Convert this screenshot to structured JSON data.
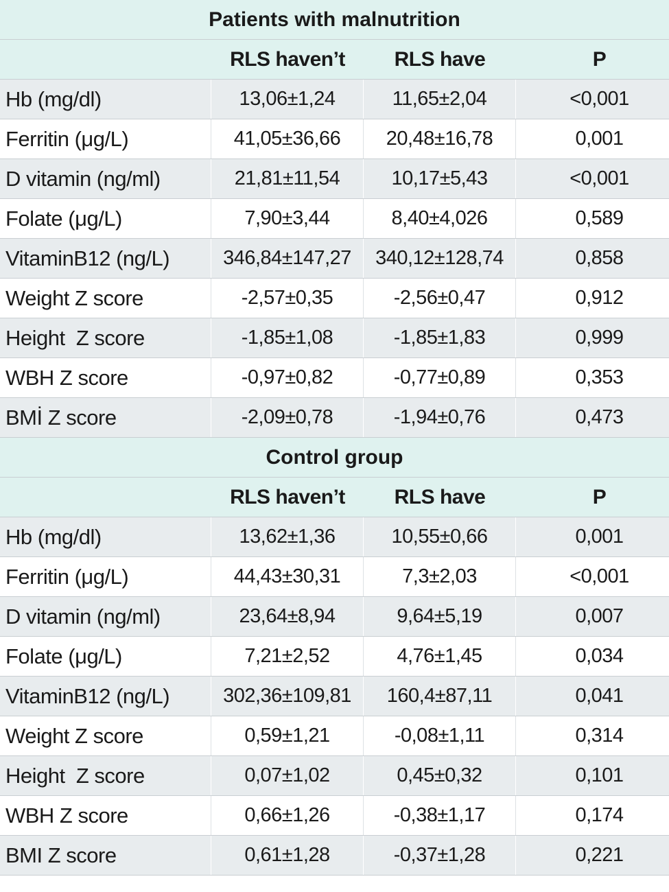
{
  "groups": [
    {
      "title": "Patients with malnutrition",
      "headers": [
        "",
        "RLS haven’t",
        "RLS have",
        "P"
      ],
      "rows": [
        {
          "label": "Hb (mg/dl)",
          "no_rls": "13,06±1,24",
          "rls": "11,65±2,04",
          "p": "<0,001"
        },
        {
          "label": "Ferritin (μg/L)",
          "no_rls": "41,05±36,66",
          "rls": "20,48±16,78",
          "p": "0,001"
        },
        {
          "label": "D vitamin (ng/ml)",
          "no_rls": "21,81±11,54",
          "rls": "10,17±5,43",
          "p": "<0,001"
        },
        {
          "label": "Folate (μg/L)",
          "no_rls": "7,90±3,44",
          "rls": "8,40±4,026",
          "p": "0,589"
        },
        {
          "label": "VitaminB12 (ng/L)",
          "no_rls": "346,84±147,27",
          "rls": "340,12±128,74",
          "p": "0,858"
        },
        {
          "label": "Weight Z score",
          "no_rls": "-2,57±0,35",
          "rls": "-2,56±0,47",
          "p": "0,912"
        },
        {
          "label": "Height  Z score",
          "no_rls": "-1,85±1,08",
          "rls": "-1,85±1,83",
          "p": "0,999"
        },
        {
          "label": "WBH Z score",
          "no_rls": "-0,97±0,82",
          "rls": "-0,77±0,89",
          "p": "0,353"
        },
        {
          "label": "BMİ Z score",
          "no_rls": "-2,09±0,78",
          "rls": "-1,94±0,76",
          "p": "0,473"
        }
      ]
    },
    {
      "title": "Control group",
      "headers": [
        "",
        "RLS haven’t",
        "RLS have",
        "P"
      ],
      "rows": [
        {
          "label": "Hb (mg/dl)",
          "no_rls": "13,62±1,36",
          "rls": "10,55±0,66",
          "p": "0,001"
        },
        {
          "label": "Ferritin (μg/L)",
          "no_rls": "44,43±30,31",
          "rls": "7,3±2,03",
          "p": "<0,001"
        },
        {
          "label": "D vitamin (ng/ml)",
          "no_rls": "23,64±8,94",
          "rls": "9,64±5,19",
          "p": "0,007"
        },
        {
          "label": "Folate (μg/L)",
          "no_rls": "7,21±2,52",
          "rls": "4,76±1,45",
          "p": "0,034"
        },
        {
          "label": "VitaminB12 (ng/L)",
          "no_rls": "302,36±109,81",
          "rls": "160,4±87,11",
          "p": "0,041"
        },
        {
          "label": "Weight Z score",
          "no_rls": "0,59±1,21",
          "rls": "-0,08±1,11",
          "p": "0,314"
        },
        {
          "label": "Height  Z score",
          "no_rls": "0,07±1,02",
          "rls": "0,45±0,32",
          "p": "0,101"
        },
        {
          "label": "WBH Z score",
          "no_rls": "0,66±1,26",
          "rls": "-0,38±1,17",
          "p": "0,174"
        },
        {
          "label": "BMI Z score",
          "no_rls": "0,61±1,28",
          "rls": "-0,37±1,28",
          "p": "0,221"
        }
      ]
    }
  ],
  "colors": {
    "header_bg": "#dff2ef",
    "shaded_row_bg": "#e8ecee",
    "white_row_bg": "#ffffff",
    "border": "#c9ced2"
  }
}
